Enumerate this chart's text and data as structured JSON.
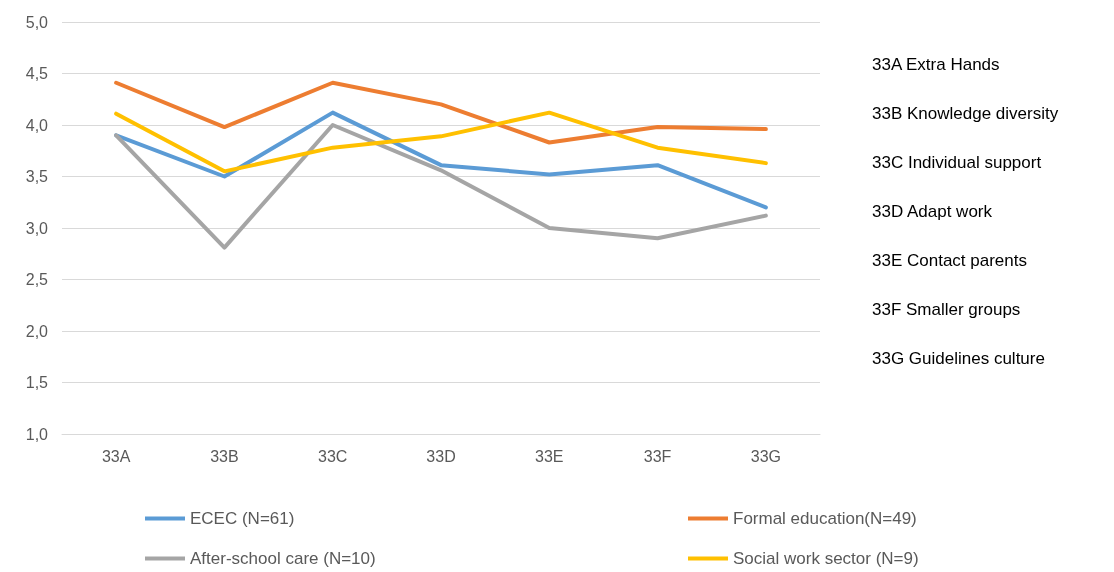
{
  "chart_data": {
    "type": "line",
    "categories": [
      "33A",
      "33B",
      "33C",
      "33D",
      "33E",
      "33F",
      "33G"
    ],
    "series": [
      {
        "name": "ECEC (N=61)",
        "color": "#5b9bd5",
        "values": [
          3.9,
          3.5,
          4.12,
          3.61,
          3.52,
          3.61,
          3.2
        ]
      },
      {
        "name": "Formal education(N=49)",
        "color": "#ed7d31",
        "values": [
          4.41,
          3.98,
          4.41,
          4.2,
          3.83,
          3.98,
          3.96
        ]
      },
      {
        "name": "After-school care (N=10)",
        "color": "#a5a5a5",
        "values": [
          3.9,
          2.81,
          4.0,
          3.56,
          3.0,
          2.9,
          3.12
        ]
      },
      {
        "name": "Social work sector (N=9)",
        "color": "#ffc000",
        "values": [
          4.11,
          3.55,
          3.78,
          3.89,
          4.12,
          3.78,
          3.63
        ]
      }
    ],
    "ylim": [
      1,
      5
    ],
    "yticks": [
      {
        "value": 1,
        "label": "1,0"
      },
      {
        "value": 1.5,
        "label": "1,5"
      },
      {
        "value": 2,
        "label": "2,0"
      },
      {
        "value": 2.5,
        "label": "2,5"
      },
      {
        "value": 3,
        "label": "3,0"
      },
      {
        "value": 3.5,
        "label": "3,5"
      },
      {
        "value": 4,
        "label": "4,0"
      },
      {
        "value": 4.5,
        "label": "4,5"
      },
      {
        "value": 5,
        "label": "5,0"
      }
    ],
    "grid": "y",
    "legend": "bottom",
    "marker": "none",
    "line_style": "solid",
    "annotations": [
      "33A Extra Hands",
      "33B Knowledge diversity",
      "33C Individual support",
      "33D Adapt work",
      "33E Contact parents",
      "33F Smaller groups",
      "33G Guidelines culture"
    ]
  }
}
